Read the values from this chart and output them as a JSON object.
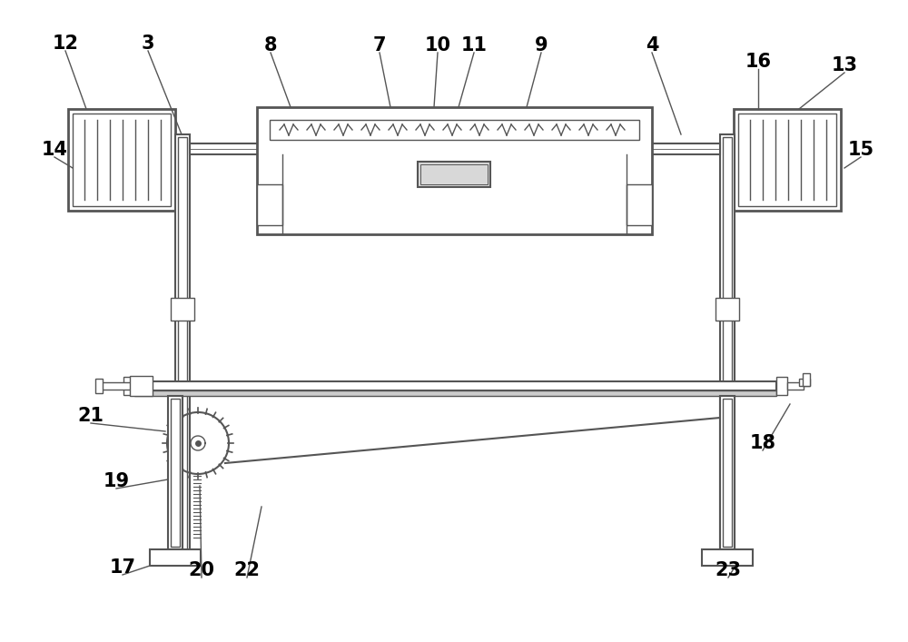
{
  "bg_color": "#ffffff",
  "line_color": "#555555",
  "lw_thin": 1.0,
  "lw_med": 1.5,
  "lw_thick": 2.0,
  "font_size": 15,
  "fig_w": 10.0,
  "fig_h": 7.07,
  "dpi": 100
}
